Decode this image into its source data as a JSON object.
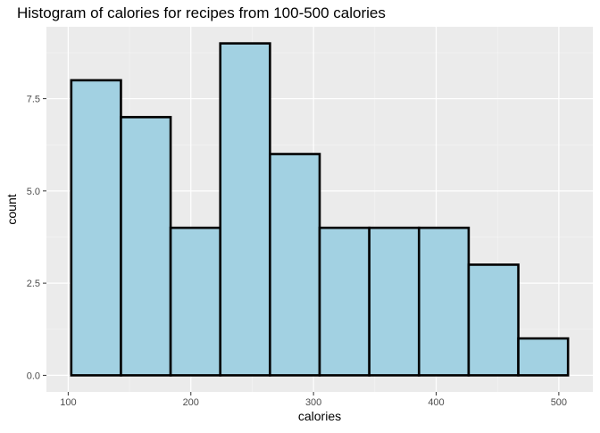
{
  "chart_data": {
    "type": "bar",
    "subtype": "histogram",
    "title": "Histogram of calories for recipes from 100-500 calories",
    "xlabel": "calories",
    "ylabel": "count",
    "bins": [
      {
        "start": 102.5,
        "end": 143.0,
        "count": 8
      },
      {
        "start": 143.0,
        "end": 183.5,
        "count": 7
      },
      {
        "start": 183.5,
        "end": 224.0,
        "count": 4
      },
      {
        "start": 224.0,
        "end": 264.5,
        "count": 9
      },
      {
        "start": 264.5,
        "end": 305.0,
        "count": 6
      },
      {
        "start": 305.0,
        "end": 345.5,
        "count": 4
      },
      {
        "start": 345.5,
        "end": 386.0,
        "count": 4
      },
      {
        "start": 386.0,
        "end": 426.5,
        "count": 4
      },
      {
        "start": 426.5,
        "end": 467.0,
        "count": 3
      },
      {
        "start": 467.0,
        "end": 507.5,
        "count": 1
      }
    ],
    "xlim": [
      82.25,
      527.75
    ],
    "ylim": [
      -0.45,
      9.45
    ],
    "x_ticks": [
      100,
      200,
      300,
      400,
      500
    ],
    "x_tick_labels": [
      "100",
      "200",
      "300",
      "400",
      "500"
    ],
    "y_ticks": [
      0,
      2.5,
      5,
      7.5
    ],
    "y_tick_labels": [
      "0.0",
      "2.5",
      "5.0",
      "7.5"
    ],
    "grid": true,
    "colors": {
      "bar_fill": "#a2d1e2",
      "bar_stroke": "#000000",
      "panel_background": "#ebebeb",
      "grid_major": "#ffffff",
      "grid_minor": "#f5f5f5",
      "tick_label": "#4d4d4d"
    }
  }
}
